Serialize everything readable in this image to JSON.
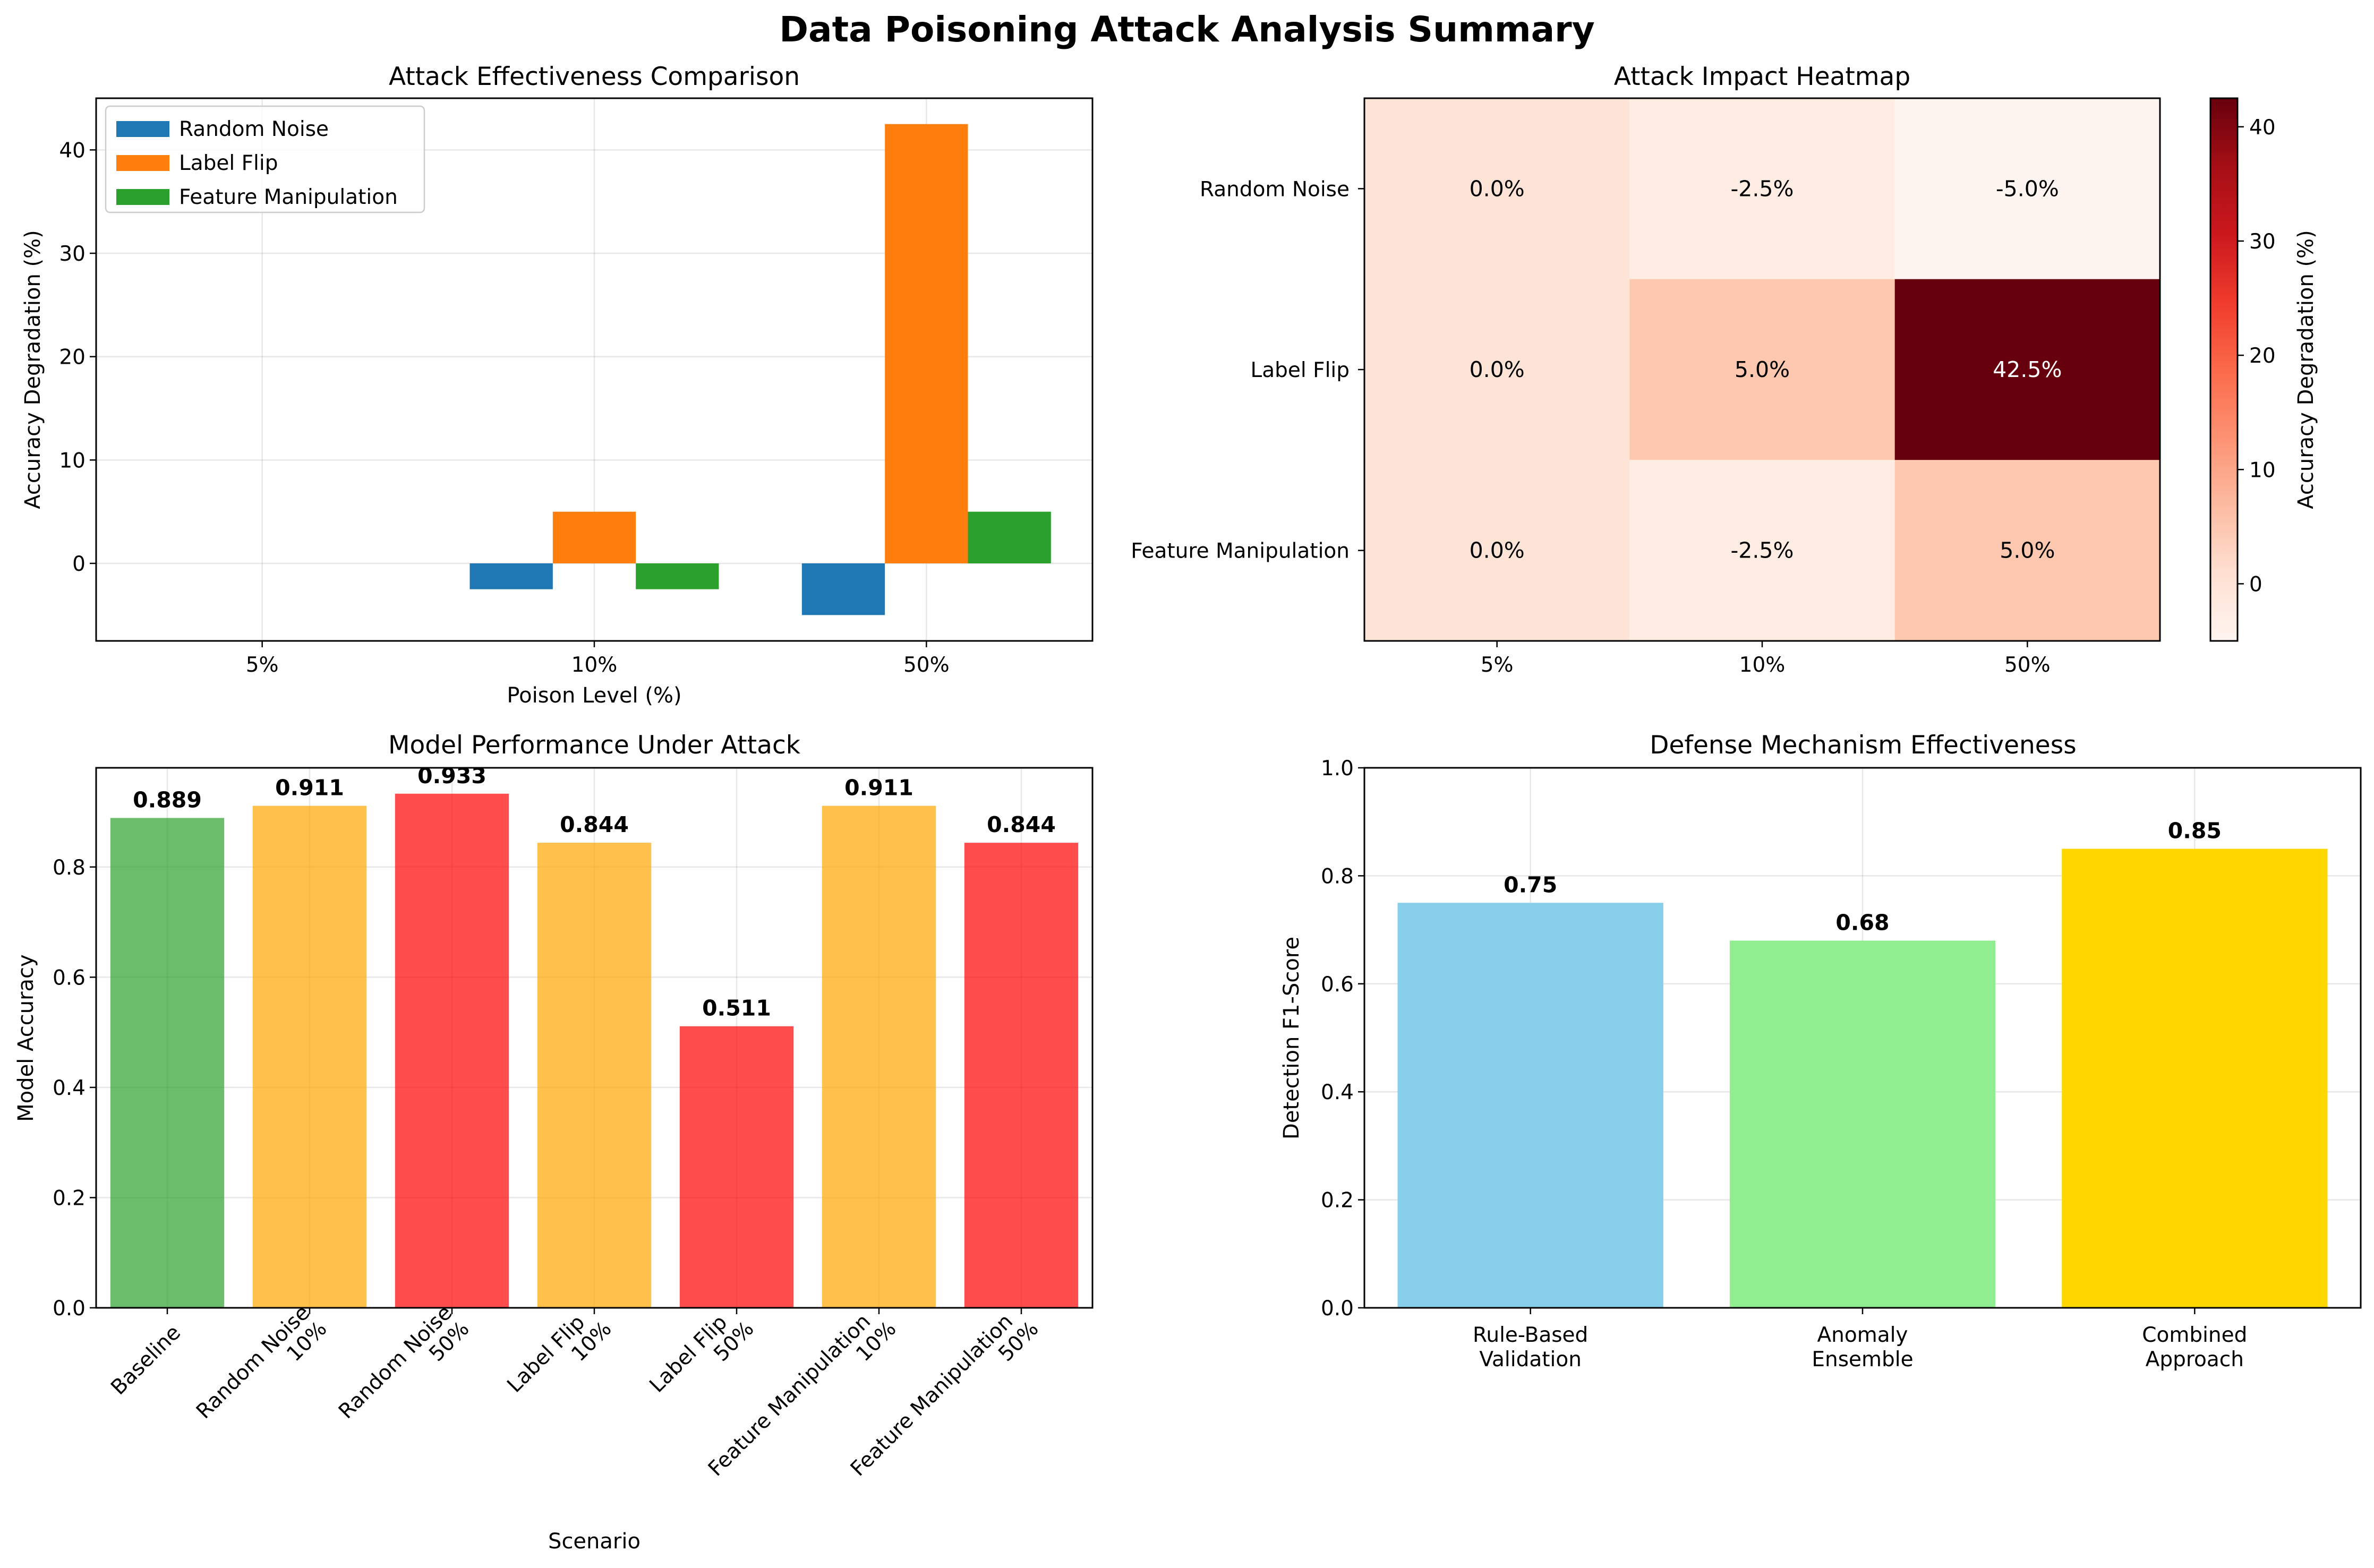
{
  "title": "Data Poisoning Attack Analysis Summary",
  "chart_data": [
    {
      "type": "bar",
      "title": "Attack Effectiveness Comparison",
      "xlabel": "Poison Level (%)",
      "ylabel": "Accuracy Degradation (%)",
      "categories": [
        "5%",
        "10%",
        "50%"
      ],
      "series": [
        {
          "name": "Random Noise",
          "color": "#1f77b4",
          "values": [
            0.0,
            -2.5,
            -5.0
          ]
        },
        {
          "name": "Label Flip",
          "color": "#ff7f0e",
          "values": [
            0.0,
            5.0,
            42.5
          ]
        },
        {
          "name": "Feature Manipulation",
          "color": "#2ca02c",
          "values": [
            0.0,
            -2.5,
            5.0
          ]
        }
      ],
      "ylim": [
        -7.5,
        45
      ],
      "yticks": [
        0,
        10,
        20,
        30,
        40
      ],
      "grid": true,
      "legend": "top-left"
    },
    {
      "type": "heatmap",
      "title": "Attack Impact Heatmap",
      "rows": [
        "Random Noise",
        "Label Flip",
        "Feature Manipulation"
      ],
      "columns": [
        "5%",
        "10%",
        "50%"
      ],
      "values": [
        [
          0.0,
          -2.5,
          -5.0
        ],
        [
          0.0,
          5.0,
          42.5
        ],
        [
          0.0,
          -2.5,
          5.0
        ]
      ],
      "cell_labels": [
        [
          "0.0%",
          "-2.5%",
          "-5.0%"
        ],
        [
          "0.0%",
          "5.0%",
          "42.5%"
        ],
        [
          "0.0%",
          "-2.5%",
          "5.0%"
        ]
      ],
      "colormap": "Reds",
      "colorbar_label": "Accuracy Degradation (%)",
      "colorbar_range": [
        -5.0,
        42.5
      ],
      "colorbar_ticks": [
        0,
        10,
        20,
        30,
        40
      ]
    },
    {
      "type": "bar",
      "title": "Model Performance Under Attack",
      "xlabel": "Scenario",
      "ylabel": "Model Accuracy",
      "categories": [
        [
          "Baseline"
        ],
        [
          "Random Noise",
          "10%"
        ],
        [
          "Random Noise",
          "50%"
        ],
        [
          "Label Flip",
          "10%"
        ],
        [
          "Label Flip",
          "50%"
        ],
        [
          "Feature Manipulation",
          "10%"
        ],
        [
          "Feature Manipulation",
          "50%"
        ]
      ],
      "values": [
        0.889,
        0.911,
        0.933,
        0.844,
        0.511,
        0.911,
        0.844
      ],
      "value_labels": [
        "0.889",
        "0.911",
        "0.933",
        "0.844",
        "0.511",
        "0.911",
        "0.844"
      ],
      "colors": [
        "#2ca02c",
        "#ffa500",
        "#ff0000",
        "#ffa500",
        "#ff0000",
        "#ffa500",
        "#ff0000"
      ],
      "ylim": [
        0,
        0.98
      ],
      "yticks": [
        0.0,
        0.2,
        0.4,
        0.6,
        0.8
      ],
      "ytick_labels": [
        "0.0",
        "0.2",
        "0.4",
        "0.6",
        "0.8"
      ],
      "grid": true
    },
    {
      "type": "bar",
      "title": "Defense Mechanism Effectiveness",
      "xlabel": "",
      "ylabel": "Detection F1-Score",
      "categories": [
        [
          "Rule-Based",
          "Validation"
        ],
        [
          "Anomaly",
          "Ensemble"
        ],
        [
          "Combined",
          "Approach"
        ]
      ],
      "values": [
        0.75,
        0.68,
        0.85
      ],
      "value_labels": [
        "0.75",
        "0.68",
        "0.85"
      ],
      "colors": [
        "#87ceeb",
        "#90ee90",
        "#ffd700"
      ],
      "ylim": [
        0,
        1.0
      ],
      "yticks": [
        0.0,
        0.2,
        0.4,
        0.6,
        0.8,
        1.0
      ],
      "ytick_labels": [
        "0.0",
        "0.2",
        "0.4",
        "0.6",
        "0.8",
        "1.0"
      ],
      "grid": true
    }
  ]
}
